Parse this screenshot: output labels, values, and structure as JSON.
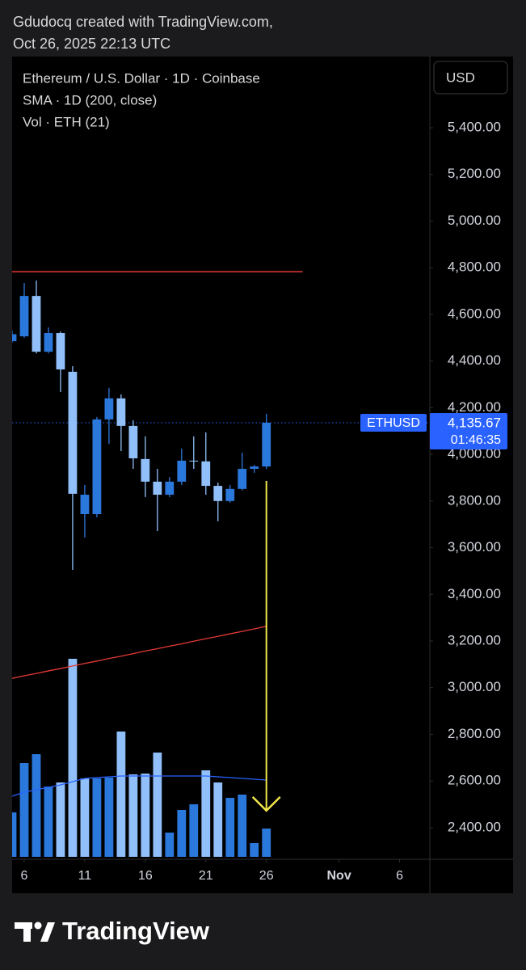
{
  "header": {
    "line1": "Gdudocq created with TradingView.com,",
    "line2": "Oct 26, 2025 22:13 UTC"
  },
  "footer": {
    "brand": "TradingView"
  },
  "chart_data": {
    "type": "candlestick",
    "title": "Ethereum / U.S. Dollar · 1D · Coinbase",
    "currency_button": "USD",
    "x": [
      5,
      6,
      7,
      8,
      9,
      10,
      11,
      12,
      13,
      14,
      15,
      16,
      17,
      18,
      19,
      20,
      21,
      22,
      23,
      24,
      25,
      26
    ],
    "open": [
      4485,
      4506,
      4679,
      4440,
      4520,
      4354,
      3744,
      3744,
      4150,
      4240,
      4122,
      3980,
      3883,
      3827,
      3883,
      3973,
      3970,
      3865,
      3800,
      3852,
      3938,
      3948
    ],
    "high": [
      4530,
      4735,
      4745,
      4544,
      4527,
      4378,
      3869,
      4160,
      4285,
      4257,
      4146,
      4077,
      3938,
      3903,
      4025,
      4077,
      4094,
      3879,
      3869,
      4007,
      3955,
      4174
    ],
    "low": [
      4480,
      4500,
      4433,
      4433,
      4267,
      3505,
      3644,
      3730,
      4045,
      4014,
      3938,
      3817,
      3671,
      3817,
      3869,
      3938,
      3827,
      3713,
      3793,
      3845,
      3921,
      3938
    ],
    "close": [
      4515,
      4679,
      4440,
      4520,
      4364,
      3831,
      3827,
      4150,
      4240,
      4122,
      3983,
      3883,
      3827,
      3883,
      3973,
      3970,
      3865,
      3800,
      3852,
      3938,
      3948,
      4135.67
    ],
    "up_color": "#2b78dc",
    "down_color": "#90bff9",
    "sma": {
      "name": "SMA · 1D (200, close)",
      "color": "#e53935",
      "values": [
        3040,
        3051,
        3061,
        3072,
        3082,
        3093,
        3104,
        3114,
        3125,
        3135,
        3146,
        3157,
        3167,
        3178,
        3188,
        3199,
        3210,
        3220,
        3231,
        3241,
        3252,
        3263
      ]
    },
    "volume": {
      "name": "Vol · ETH (21)",
      "values": [
        55,
        116,
        127,
        87,
        92,
        245,
        97,
        97,
        98,
        155,
        102,
        103,
        129,
        30,
        58,
        65,
        107,
        92,
        73,
        77,
        17,
        35
      ],
      "colors": [
        "#2b78dc",
        "#2b78dc",
        "#2b78dc",
        "#2b78dc",
        "#90bff9",
        "#90bff9",
        "#90bff9",
        "#2b78dc",
        "#2b78dc",
        "#90bff9",
        "#90bff9",
        "#90bff9",
        "#90bff9",
        "#2b78dc",
        "#2b78dc",
        "#2b78dc",
        "#90bff9",
        "#90bff9",
        "#2b78dc",
        "#2b78dc",
        "#2b78dc",
        "#2b78dc"
      ],
      "ma": [
        75,
        80,
        83,
        86,
        89,
        93,
        97,
        98,
        99,
        100,
        100,
        100,
        100,
        100,
        100,
        100,
        100,
        99,
        98,
        97,
        96,
        95
      ],
      "ma_color": "#2962ff"
    },
    "hline": {
      "value": 4783,
      "x_range": [
        5,
        29
      ],
      "color": "#e53935"
    },
    "arrow": {
      "x": 26,
      "from": 3886,
      "to": 2473,
      "color": "#f2e64a"
    },
    "last_price": {
      "value": 4135.67,
      "label": "4,135.67",
      "symbol": "ETHUSD",
      "countdown": "01:46:35",
      "color": "#2962ff"
    },
    "xlim": [
      5,
      39.5
    ],
    "xticks": [
      6,
      11,
      16,
      21,
      26,
      {
        "value": 32,
        "label": "Nov"
      },
      {
        "value": 37,
        "label": "6"
      }
    ],
    "ylim": [
      2268,
      5705
    ],
    "yticks": [
      {
        "value": 2400,
        "label": "2,400.00"
      },
      {
        "value": 2600,
        "label": "2,600.00"
      },
      {
        "value": 2800,
        "label": "2,800.00"
      },
      {
        "value": 3000,
        "label": "3,000.00"
      },
      {
        "value": 3200,
        "label": "3,200.00"
      },
      {
        "value": 3400,
        "label": "3,400.00"
      },
      {
        "value": 3600,
        "label": "3,600.00"
      },
      {
        "value": 3800,
        "label": "3,800.00"
      },
      {
        "value": 4000,
        "label": "4,000.00"
      },
      {
        "value": 4200,
        "label": "4,200.00"
      },
      {
        "value": 4400,
        "label": "4,400.00"
      },
      {
        "value": 4600,
        "label": "4,600.00"
      },
      {
        "value": 4800,
        "label": "4,800.00"
      },
      {
        "value": 5000,
        "label": "5,000.00"
      },
      {
        "value": 5200,
        "label": "5,200.00"
      },
      {
        "value": 5400,
        "label": "5,400.00"
      }
    ],
    "grid": false
  }
}
